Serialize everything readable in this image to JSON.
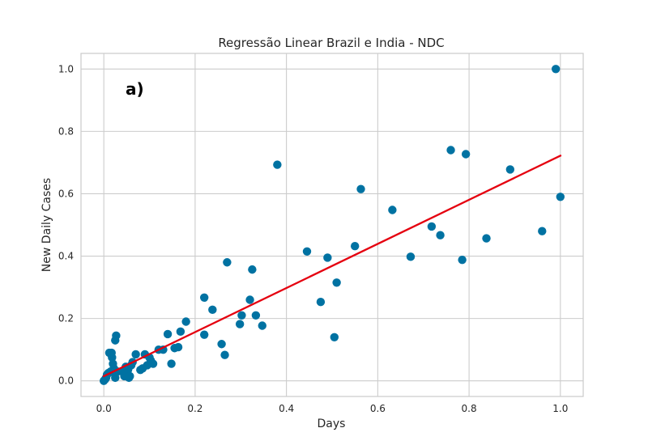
{
  "chart_data": {
    "type": "scatter",
    "title": "Regressão Linear Brazil e India - NDC",
    "annotation": "a)",
    "xlabel": "Days",
    "ylabel": "New Daily Cases",
    "xlim": [
      -0.05,
      1.05
    ],
    "ylim": [
      -0.05,
      1.05
    ],
    "xticks": [
      0.0,
      0.2,
      0.4,
      0.6,
      0.8,
      1.0
    ],
    "xtick_labels": [
      "0.0",
      "0.2",
      "0.4",
      "0.6",
      "0.8",
      "1.0"
    ],
    "yticks": [
      0.0,
      0.2,
      0.4,
      0.6,
      0.8,
      1.0
    ],
    "ytick_labels": [
      "0.0",
      "0.2",
      "0.4",
      "0.6",
      "0.8",
      "1.0"
    ],
    "grid": true,
    "colors": {
      "points": "#0072a2",
      "line": "#e5000f",
      "grid": "#cccccc",
      "frame": "#cccccc"
    },
    "series": [
      {
        "kind": "scatter",
        "points": [
          [
            0.0,
            0.0
          ],
          [
            0.003,
            0.005
          ],
          [
            0.005,
            0.01
          ],
          [
            0.007,
            0.02
          ],
          [
            0.01,
            0.025
          ],
          [
            0.012,
            0.09
          ],
          [
            0.015,
            0.03
          ],
          [
            0.017,
            0.09
          ],
          [
            0.018,
            0.075
          ],
          [
            0.02,
            0.055
          ],
          [
            0.022,
            0.04
          ],
          [
            0.025,
            0.13
          ],
          [
            0.027,
            0.145
          ],
          [
            0.025,
            0.01
          ],
          [
            0.03,
            0.03
          ],
          [
            0.04,
            0.03
          ],
          [
            0.045,
            0.015
          ],
          [
            0.048,
            0.045
          ],
          [
            0.05,
            0.02
          ],
          [
            0.053,
            0.035
          ],
          [
            0.055,
            0.01
          ],
          [
            0.057,
            0.015
          ],
          [
            0.06,
            0.05
          ],
          [
            0.063,
            0.06
          ],
          [
            0.07,
            0.085
          ],
          [
            0.08,
            0.035
          ],
          [
            0.085,
            0.04
          ],
          [
            0.09,
            0.085
          ],
          [
            0.095,
            0.05
          ],
          [
            0.1,
            0.075
          ],
          [
            0.103,
            0.065
          ],
          [
            0.108,
            0.055
          ],
          [
            0.12,
            0.1
          ],
          [
            0.13,
            0.1
          ],
          [
            0.14,
            0.15
          ],
          [
            0.148,
            0.055
          ],
          [
            0.155,
            0.105
          ],
          [
            0.163,
            0.108
          ],
          [
            0.168,
            0.158
          ],
          [
            0.18,
            0.19
          ],
          [
            0.22,
            0.148
          ],
          [
            0.22,
            0.267
          ],
          [
            0.238,
            0.228
          ],
          [
            0.258,
            0.118
          ],
          [
            0.265,
            0.083
          ],
          [
            0.27,
            0.38
          ],
          [
            0.298,
            0.182
          ],
          [
            0.302,
            0.21
          ],
          [
            0.32,
            0.26
          ],
          [
            0.325,
            0.357
          ],
          [
            0.333,
            0.21
          ],
          [
            0.347,
            0.177
          ],
          [
            0.38,
            0.693
          ],
          [
            0.445,
            0.415
          ],
          [
            0.475,
            0.253
          ],
          [
            0.49,
            0.395
          ],
          [
            0.505,
            0.14
          ],
          [
            0.51,
            0.315
          ],
          [
            0.55,
            0.432
          ],
          [
            0.563,
            0.615
          ],
          [
            0.632,
            0.548
          ],
          [
            0.672,
            0.398
          ],
          [
            0.718,
            0.495
          ],
          [
            0.737,
            0.467
          ],
          [
            0.76,
            0.74
          ],
          [
            0.785,
            0.388
          ],
          [
            0.793,
            0.727
          ],
          [
            0.838,
            0.457
          ],
          [
            0.89,
            0.678
          ],
          [
            0.96,
            0.48
          ],
          [
            0.99,
            1.0
          ],
          [
            1.0,
            0.59
          ]
        ]
      },
      {
        "kind": "line",
        "points": [
          [
            0.0,
            0.015
          ],
          [
            1.0,
            0.722
          ]
        ]
      }
    ]
  }
}
